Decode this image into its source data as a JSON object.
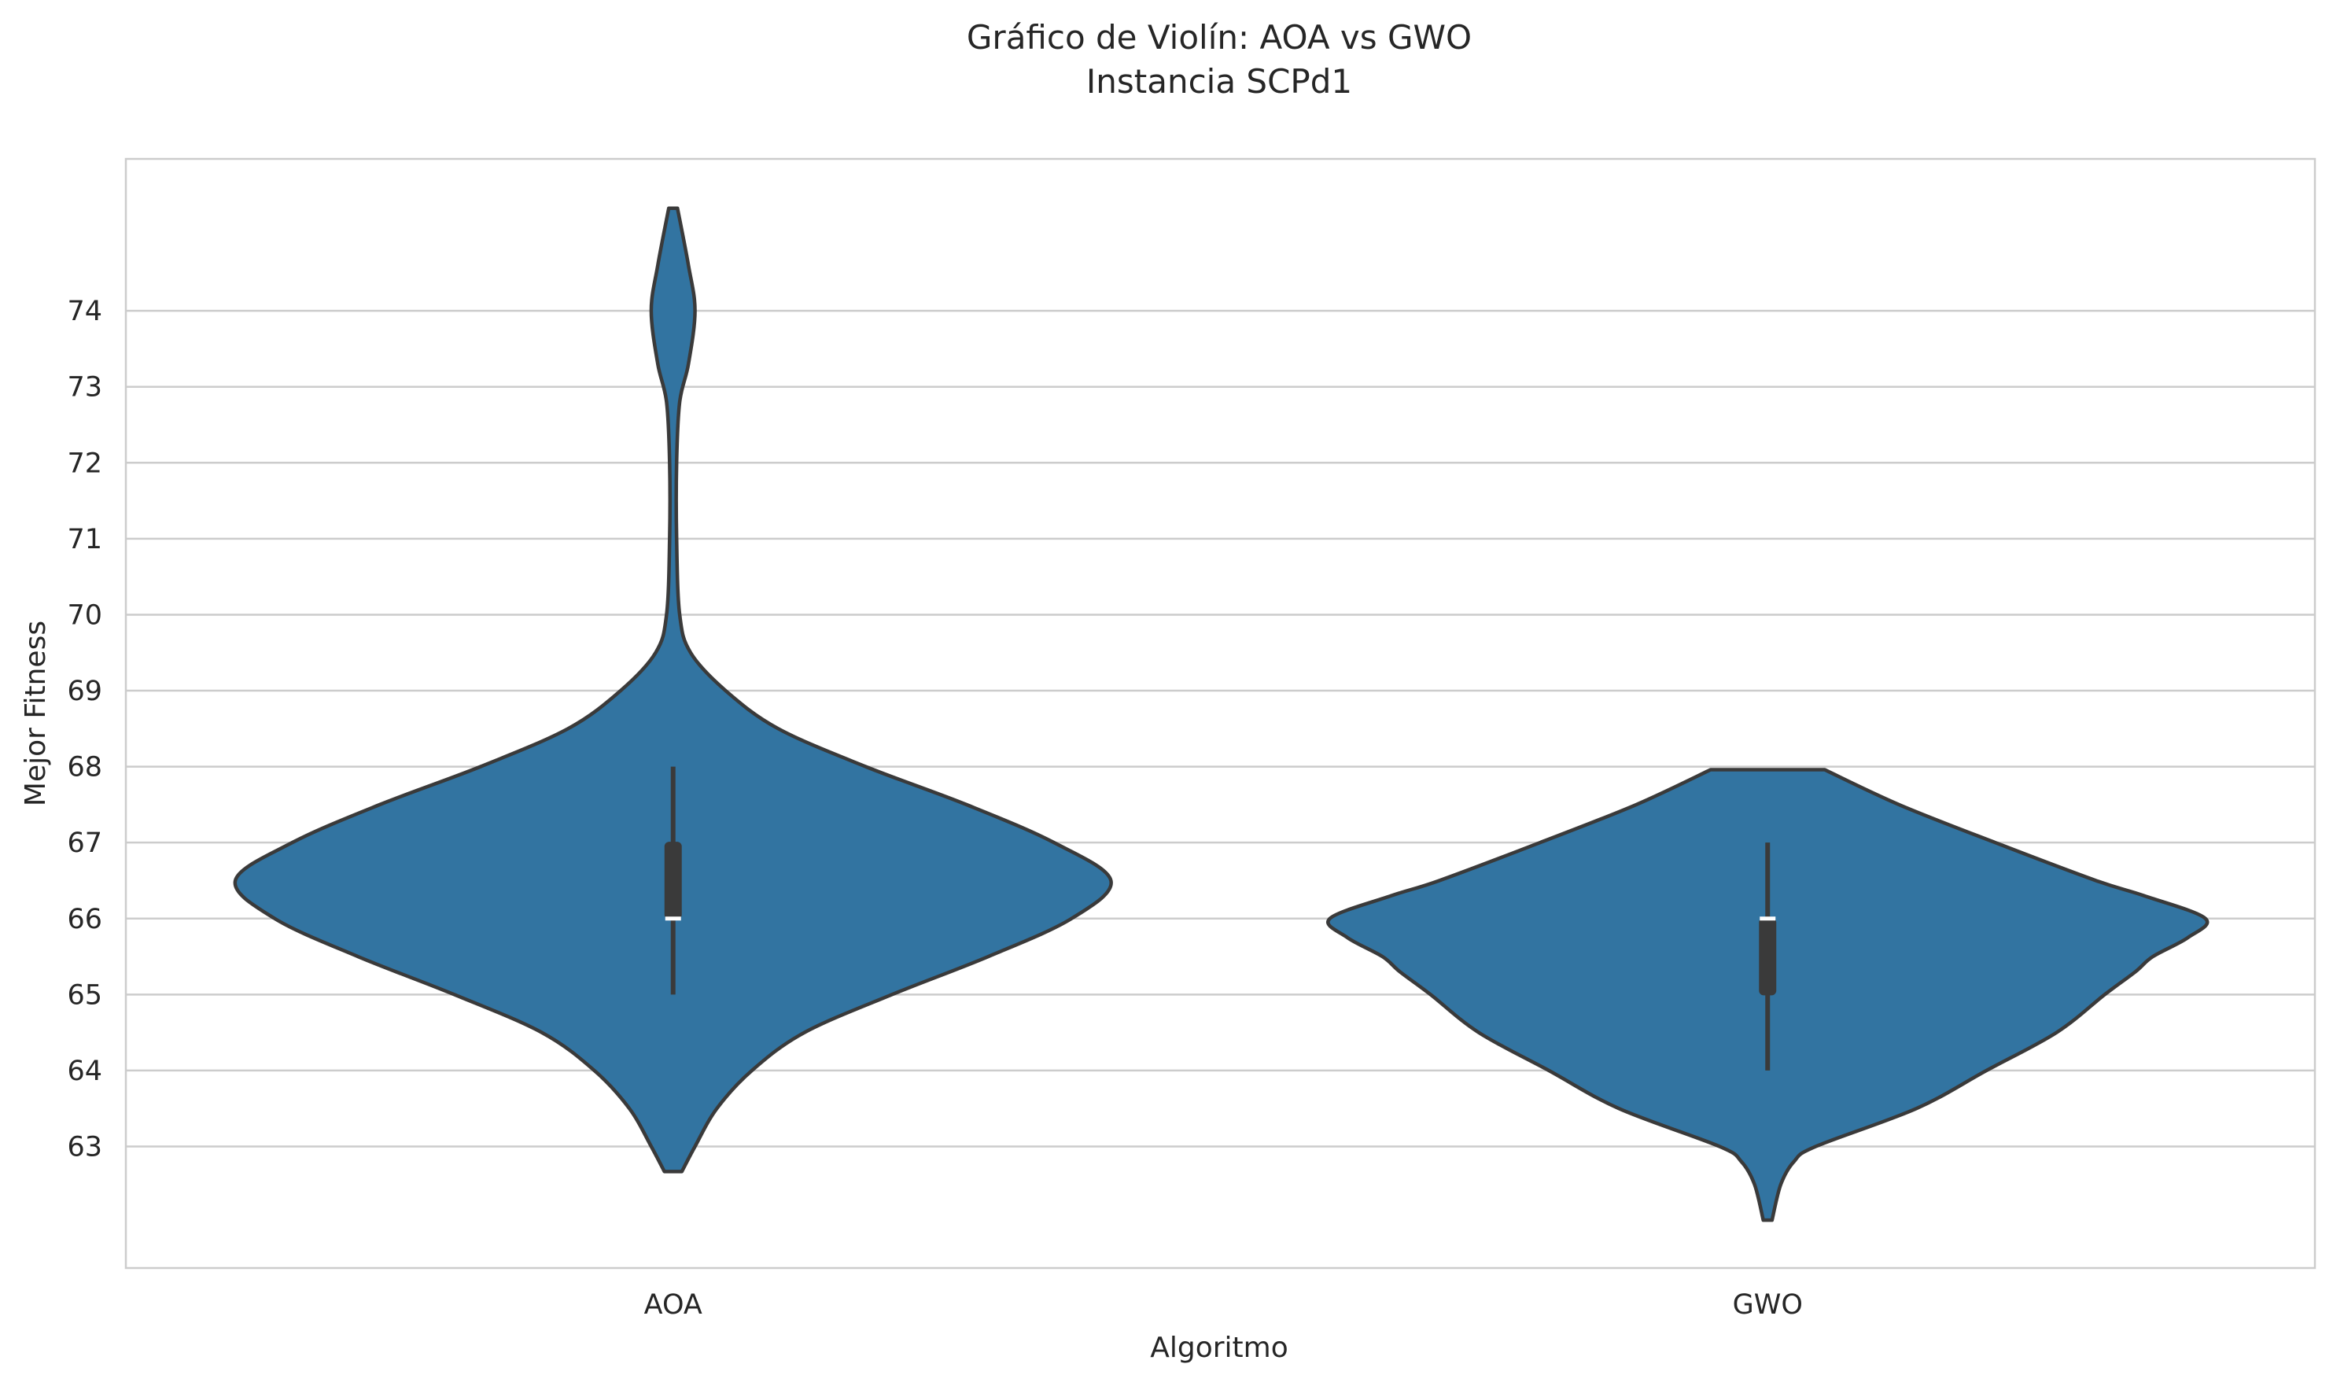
{
  "chart_data": {
    "type": "violin",
    "title": "Gráfico de Violín: AOA vs GWO",
    "subtitle": "Instancia SCPd1",
    "xlabel": "Algoritmo",
    "ylabel": "Mejor Fitness",
    "ylim": [
      61.4,
      76.0
    ],
    "yticks": [
      63,
      64,
      65,
      66,
      67,
      68,
      69,
      70,
      71,
      72,
      73,
      74
    ],
    "grid": "horizontal",
    "categories": [
      "AOA",
      "GWO"
    ],
    "color": "#3274a1",
    "edge_color": "#3a3a3a",
    "violins": [
      {
        "name": "AOA",
        "min": 62.67,
        "max": 75.35,
        "q1": 66.0,
        "median": 66.0,
        "q3": 67.0,
        "whisker_low": 65.0,
        "whisker_high": 68.0,
        "density_profile": [
          [
            62.67,
            0.02
          ],
          [
            63.0,
            0.05
          ],
          [
            63.5,
            0.1
          ],
          [
            64.0,
            0.18
          ],
          [
            64.5,
            0.3
          ],
          [
            65.0,
            0.5
          ],
          [
            65.5,
            0.72
          ],
          [
            66.0,
            0.91
          ],
          [
            66.5,
            1.0
          ],
          [
            67.0,
            0.87
          ],
          [
            67.5,
            0.67
          ],
          [
            68.0,
            0.44
          ],
          [
            68.5,
            0.24
          ],
          [
            69.0,
            0.12
          ],
          [
            69.5,
            0.04
          ],
          [
            70.0,
            0.015
          ],
          [
            71.0,
            0.008
          ],
          [
            72.0,
            0.008
          ],
          [
            72.8,
            0.015
          ],
          [
            73.3,
            0.035
          ],
          [
            74.0,
            0.05
          ],
          [
            74.6,
            0.035
          ],
          [
            75.35,
            0.01
          ]
        ]
      },
      {
        "name": "GWO",
        "min": 62.03,
        "max": 67.96,
        "q1": 65.0,
        "median": 66.0,
        "q3": 66.0,
        "whisker_low": 64.0,
        "whisker_high": 67.0,
        "density_profile": [
          [
            62.03,
            0.01
          ],
          [
            62.5,
            0.03
          ],
          [
            62.8,
            0.06
          ],
          [
            63.0,
            0.11
          ],
          [
            63.5,
            0.34
          ],
          [
            64.0,
            0.5
          ],
          [
            64.5,
            0.66
          ],
          [
            65.0,
            0.77
          ],
          [
            65.3,
            0.84
          ],
          [
            65.5,
            0.88
          ],
          [
            65.75,
            0.96
          ],
          [
            66.0,
            1.0
          ],
          [
            66.3,
            0.86
          ],
          [
            66.5,
            0.75
          ],
          [
            67.0,
            0.52
          ],
          [
            67.5,
            0.3
          ],
          [
            67.96,
            0.13
          ]
        ]
      }
    ]
  }
}
